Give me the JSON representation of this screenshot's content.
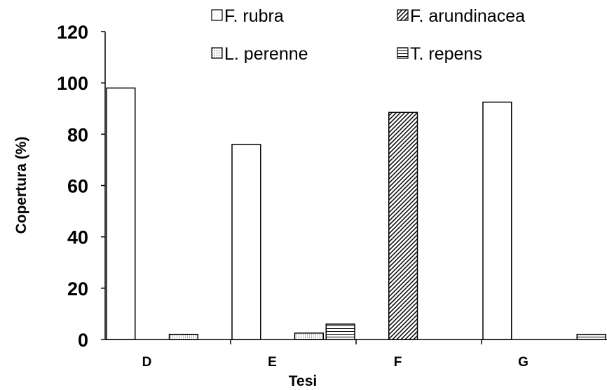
{
  "chart_data": {
    "type": "bar",
    "categories": [
      "D",
      "E",
      "F",
      "G"
    ],
    "series": [
      {
        "name": "F. rubra",
        "values": [
          98,
          76,
          0,
          92.5
        ],
        "pattern": "empty"
      },
      {
        "name": "F. arundinacea",
        "values": [
          0,
          0,
          88.5,
          0
        ],
        "pattern": "diagonal"
      },
      {
        "name": "L. perenne",
        "values": [
          2,
          2.5,
          0,
          0
        ],
        "pattern": "dots"
      },
      {
        "name": "T. repens",
        "values": [
          0,
          6,
          0,
          2
        ],
        "pattern": "horizontal"
      }
    ],
    "xlabel": "Tesi",
    "ylabel": "Copertura (%)",
    "ylim": [
      0,
      120
    ],
    "yticks": [
      0,
      20,
      40,
      60,
      80,
      100,
      120
    ],
    "grid": false,
    "legend_position": "top-right"
  }
}
